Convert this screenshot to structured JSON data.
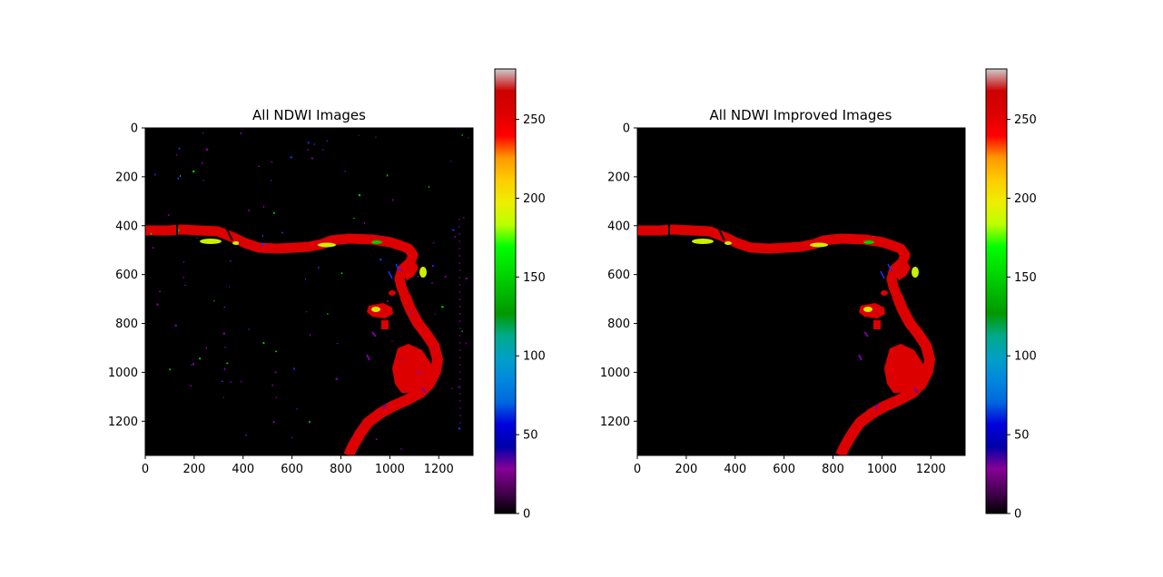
{
  "chart_data": [
    {
      "type": "heatmap",
      "title": "All NDWI Images",
      "xlim": [
        0,
        1340
      ],
      "ylim": [
        1340,
        0
      ],
      "xticks": [
        0,
        200,
        400,
        600,
        800,
        1000,
        1200
      ],
      "yticks": [
        0,
        200,
        400,
        600,
        800,
        1000,
        1200
      ],
      "colormap": "nipy_spectral",
      "colorbar": {
        "range": [
          0,
          282
        ],
        "ticks": [
          0,
          50,
          100,
          150,
          200,
          250
        ]
      }
    },
    {
      "type": "heatmap",
      "title": "All NDWI Improved Images",
      "xlim": [
        0,
        1340
      ],
      "ylim": [
        1340,
        0
      ],
      "xticks": [
        0,
        200,
        400,
        600,
        800,
        1000,
        1200
      ],
      "yticks": [
        0,
        200,
        400,
        600,
        800,
        1000,
        1200
      ],
      "colormap": "nipy_spectral",
      "colorbar": {
        "range": [
          0,
          282
        ],
        "ticks": [
          0,
          50,
          100,
          150,
          200,
          250
        ]
      }
    }
  ],
  "colors": {
    "background": "#000000",
    "water": "#dd0000",
    "edge_yellow": "#ccee00",
    "edge_green": "#00cc00",
    "noise_purple": "#7a00a0",
    "noise_blue": "#2030ff"
  }
}
